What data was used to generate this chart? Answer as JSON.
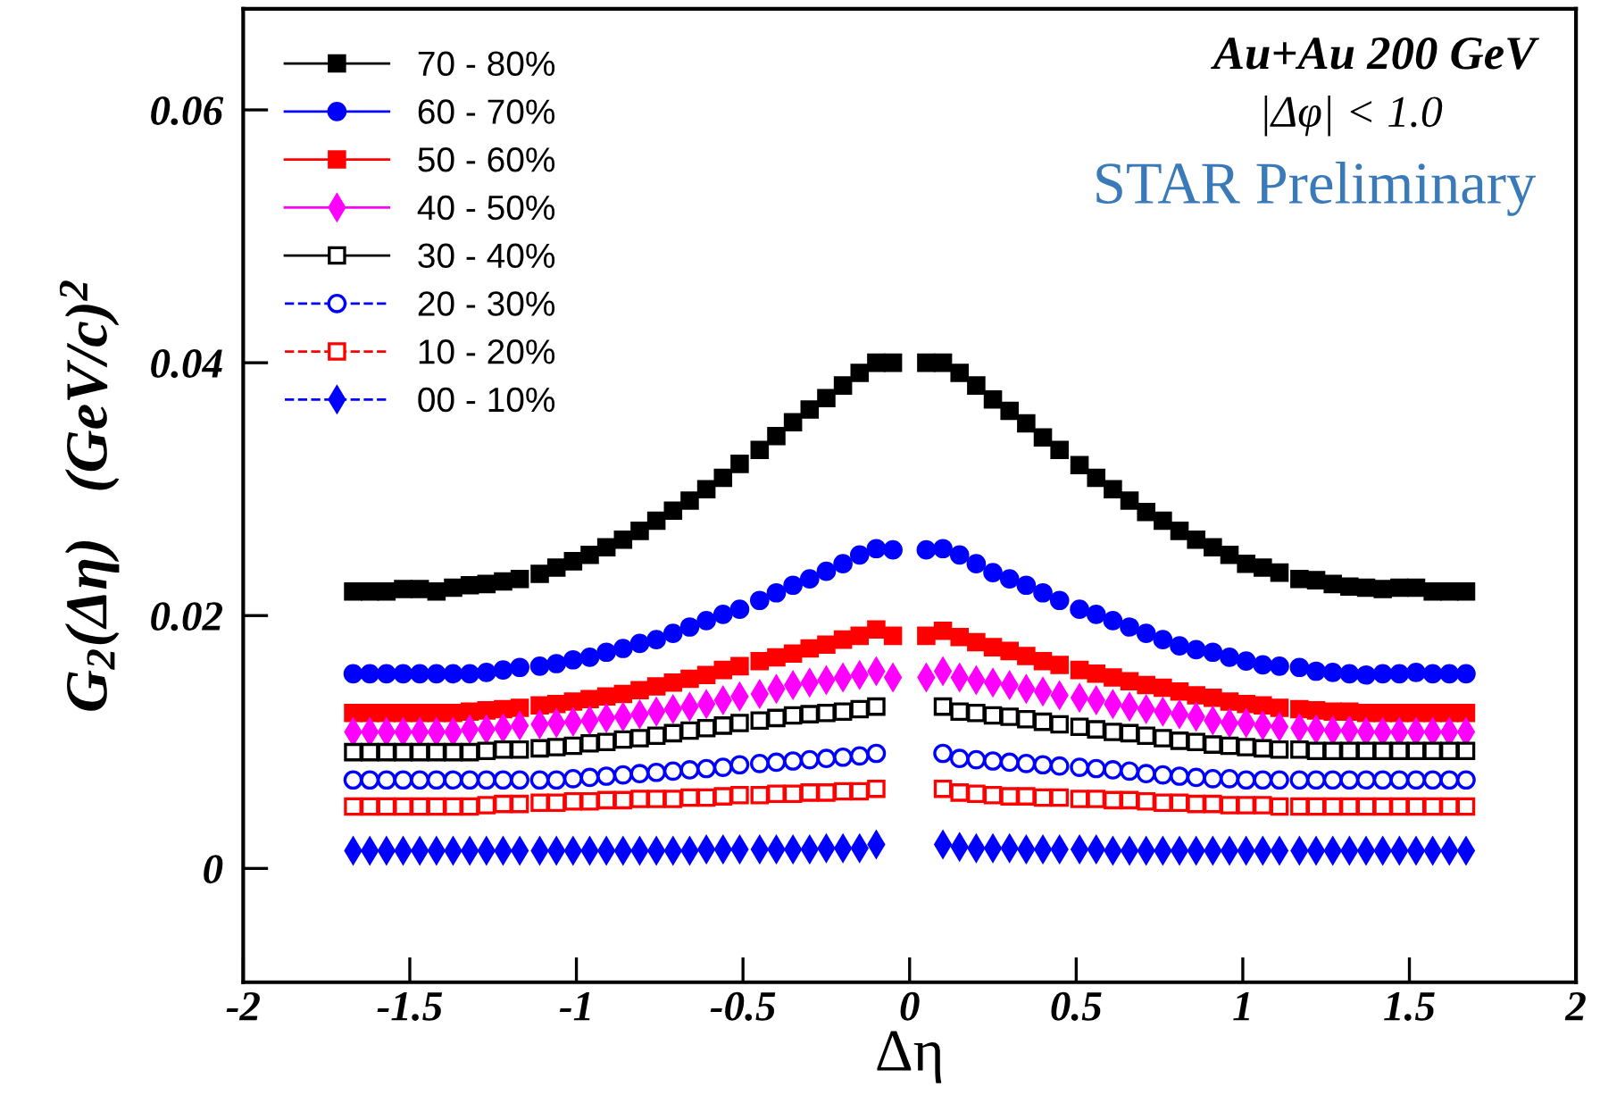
{
  "chart_data": {
    "type": "scatter",
    "xlabel": "Δη",
    "ylabel": "G$_{2}$(Δη)   (GeV/c)$^{2}$",
    "annotations": [
      "Au+Au 200 GeV",
      "|Δφ| < 1.0",
      "STAR Preliminary"
    ],
    "xlim": [
      -2,
      2
    ],
    "ylim": [
      -0.009,
      0.068
    ],
    "xticks": [
      -2,
      -1.5,
      -1,
      -0.5,
      0,
      0.5,
      1,
      1.5,
      2
    ],
    "yticks": [
      0,
      0.02,
      0.04,
      0.06
    ],
    "grid": false,
    "legend": "top left",
    "series": [
      {
        "name": "70 - 80%",
        "color": "#000000",
        "marker": "square",
        "line_style": "solid",
        "x": [
          -1.67,
          -1.62,
          -1.57,
          -1.52,
          -1.47,
          -1.42,
          -1.37,
          -1.32,
          -1.27,
          -1.22,
          -1.17,
          -1.11,
          -1.06,
          -1.01,
          -0.96,
          -0.91,
          -0.86,
          -0.81,
          -0.76,
          -0.71,
          -0.66,
          -0.61,
          -0.56,
          -0.51,
          -0.45,
          -0.4,
          -0.35,
          -0.3,
          -0.25,
          -0.2,
          -0.15,
          -0.1,
          -0.05,
          0.05,
          0.1,
          0.15,
          0.2,
          0.25,
          0.3,
          0.35,
          0.4,
          0.45,
          0.51,
          0.56,
          0.61,
          0.66,
          0.71,
          0.76,
          0.81,
          0.86,
          0.91,
          0.96,
          1.01,
          1.06,
          1.11,
          1.17,
          1.22,
          1.27,
          1.32,
          1.37,
          1.42,
          1.47,
          1.52,
          1.57,
          1.62,
          1.67
        ],
        "values": [
          0.0219,
          0.0219,
          0.0219,
          0.0221,
          0.0221,
          0.0219,
          0.0222,
          0.0224,
          0.0225,
          0.0227,
          0.0229,
          0.0233,
          0.0238,
          0.0243,
          0.0248,
          0.0254,
          0.026,
          0.0267,
          0.0275,
          0.0283,
          0.0291,
          0.03,
          0.0309,
          0.032,
          0.0331,
          0.0342,
          0.0353,
          0.0363,
          0.0372,
          0.0382,
          0.0392,
          0.04,
          0.04,
          0.04,
          0.04,
          0.0392,
          0.0382,
          0.0371,
          0.0362,
          0.0352,
          0.0341,
          0.0331,
          0.0319,
          0.0309,
          0.03,
          0.0291,
          0.0282,
          0.0275,
          0.0267,
          0.026,
          0.0254,
          0.0248,
          0.0241,
          0.0238,
          0.0234,
          0.0229,
          0.0228,
          0.0225,
          0.0223,
          0.0222,
          0.0221,
          0.0222,
          0.0222,
          0.0219,
          0.0219,
          0.0219
        ]
      },
      {
        "name": "60 - 70%",
        "color": "#0000ff",
        "marker": "circle",
        "line_style": "solid",
        "x": [
          -1.67,
          -1.62,
          -1.57,
          -1.52,
          -1.47,
          -1.42,
          -1.37,
          -1.32,
          -1.27,
          -1.22,
          -1.17,
          -1.11,
          -1.06,
          -1.01,
          -0.96,
          -0.91,
          -0.86,
          -0.81,
          -0.76,
          -0.71,
          -0.66,
          -0.61,
          -0.56,
          -0.51,
          -0.45,
          -0.4,
          -0.35,
          -0.3,
          -0.25,
          -0.2,
          -0.15,
          -0.1,
          -0.05,
          0.05,
          0.1,
          0.15,
          0.2,
          0.25,
          0.3,
          0.35,
          0.4,
          0.45,
          0.51,
          0.56,
          0.61,
          0.66,
          0.71,
          0.76,
          0.81,
          0.86,
          0.91,
          0.96,
          1.01,
          1.06,
          1.11,
          1.17,
          1.22,
          1.27,
          1.32,
          1.37,
          1.42,
          1.47,
          1.52,
          1.57,
          1.62,
          1.67
        ],
        "values": [
          0.0154,
          0.0154,
          0.0154,
          0.0154,
          0.0154,
          0.0154,
          0.0154,
          0.0154,
          0.0155,
          0.0157,
          0.0159,
          0.016,
          0.0162,
          0.0165,
          0.0167,
          0.0171,
          0.0174,
          0.0178,
          0.0181,
          0.0186,
          0.0191,
          0.0196,
          0.0201,
          0.0205,
          0.0212,
          0.0218,
          0.0224,
          0.0229,
          0.0235,
          0.0241,
          0.0248,
          0.0253,
          0.0252,
          0.0252,
          0.0253,
          0.0248,
          0.0241,
          0.0234,
          0.0229,
          0.0224,
          0.0218,
          0.0212,
          0.0205,
          0.0201,
          0.0196,
          0.0191,
          0.0186,
          0.0181,
          0.0176,
          0.0173,
          0.0171,
          0.0167,
          0.0164,
          0.0161,
          0.016,
          0.0159,
          0.0156,
          0.0155,
          0.0154,
          0.0153,
          0.0154,
          0.0154,
          0.0155,
          0.0154,
          0.0154,
          0.0154
        ]
      },
      {
        "name": "50 - 60%",
        "color": "#ff0000",
        "marker": "square",
        "line_style": "solid",
        "x": [
          -1.67,
          -1.62,
          -1.57,
          -1.52,
          -1.47,
          -1.42,
          -1.37,
          -1.32,
          -1.27,
          -1.22,
          -1.17,
          -1.11,
          -1.06,
          -1.01,
          -0.96,
          -0.91,
          -0.86,
          -0.81,
          -0.76,
          -0.71,
          -0.66,
          -0.61,
          -0.56,
          -0.51,
          -0.45,
          -0.4,
          -0.35,
          -0.3,
          -0.25,
          -0.2,
          -0.15,
          -0.1,
          -0.05,
          0.05,
          0.1,
          0.15,
          0.2,
          0.25,
          0.3,
          0.35,
          0.4,
          0.45,
          0.51,
          0.56,
          0.61,
          0.66,
          0.71,
          0.76,
          0.81,
          0.86,
          0.91,
          0.96,
          1.01,
          1.06,
          1.11,
          1.17,
          1.22,
          1.27,
          1.32,
          1.37,
          1.42,
          1.47,
          1.52,
          1.57,
          1.62,
          1.67
        ],
        "values": [
          0.0123,
          0.0123,
          0.0123,
          0.0123,
          0.0123,
          0.0123,
          0.0123,
          0.0124,
          0.0125,
          0.0126,
          0.0127,
          0.0129,
          0.013,
          0.0132,
          0.0134,
          0.0136,
          0.0138,
          0.0141,
          0.0144,
          0.0147,
          0.015,
          0.0153,
          0.0157,
          0.016,
          0.0164,
          0.0167,
          0.017,
          0.0174,
          0.0177,
          0.0181,
          0.0184,
          0.0189,
          0.0184,
          0.0184,
          0.0188,
          0.0183,
          0.0179,
          0.0175,
          0.0172,
          0.0168,
          0.0164,
          0.0161,
          0.0157,
          0.0154,
          0.0151,
          0.0148,
          0.0145,
          0.0143,
          0.014,
          0.0137,
          0.0135,
          0.0132,
          0.013,
          0.0129,
          0.0127,
          0.0126,
          0.0125,
          0.0124,
          0.0124,
          0.0123,
          0.0123,
          0.0123,
          0.0123,
          0.0123,
          0.0123,
          0.0123
        ]
      },
      {
        "name": "40 - 50%",
        "color": "#ff00ff",
        "marker": "diamond",
        "line_style": "solid",
        "x": [
          -1.67,
          -1.62,
          -1.57,
          -1.52,
          -1.47,
          -1.42,
          -1.37,
          -1.32,
          -1.27,
          -1.22,
          -1.17,
          -1.11,
          -1.06,
          -1.01,
          -0.96,
          -0.91,
          -0.86,
          -0.81,
          -0.76,
          -0.71,
          -0.66,
          -0.61,
          -0.56,
          -0.51,
          -0.45,
          -0.4,
          -0.35,
          -0.3,
          -0.25,
          -0.2,
          -0.15,
          -0.1,
          -0.05,
          0.05,
          0.1,
          0.15,
          0.2,
          0.25,
          0.3,
          0.35,
          0.4,
          0.45,
          0.51,
          0.56,
          0.61,
          0.66,
          0.71,
          0.76,
          0.81,
          0.86,
          0.91,
          0.96,
          1.01,
          1.06,
          1.11,
          1.17,
          1.22,
          1.27,
          1.32,
          1.37,
          1.42,
          1.47,
          1.52,
          1.57,
          1.62,
          1.67
        ],
        "values": [
          0.0108,
          0.0108,
          0.0108,
          0.0108,
          0.0108,
          0.0108,
          0.0108,
          0.011,
          0.011,
          0.0111,
          0.0113,
          0.0114,
          0.0115,
          0.0116,
          0.0117,
          0.0119,
          0.012,
          0.0122,
          0.0124,
          0.0126,
          0.0128,
          0.013,
          0.0133,
          0.0136,
          0.0138,
          0.0142,
          0.0145,
          0.0147,
          0.0149,
          0.0151,
          0.0153,
          0.0156,
          0.0151,
          0.0151,
          0.0156,
          0.0151,
          0.0149,
          0.0147,
          0.0145,
          0.0142,
          0.014,
          0.0137,
          0.0135,
          0.0133,
          0.013,
          0.0128,
          0.0126,
          0.0124,
          0.0122,
          0.012,
          0.0117,
          0.0115,
          0.0115,
          0.0113,
          0.0112,
          0.0111,
          0.011,
          0.0109,
          0.0109,
          0.0108,
          0.0108,
          0.0108,
          0.0108,
          0.0108,
          0.0108,
          0.0108
        ]
      },
      {
        "name": "30 - 40%",
        "color": "#000000",
        "marker": "square-open",
        "line_style": "solid",
        "x": [
          -1.67,
          -1.62,
          -1.57,
          -1.52,
          -1.47,
          -1.42,
          -1.37,
          -1.32,
          -1.27,
          -1.22,
          -1.17,
          -1.11,
          -1.06,
          -1.01,
          -0.96,
          -0.91,
          -0.86,
          -0.81,
          -0.76,
          -0.71,
          -0.66,
          -0.61,
          -0.56,
          -0.51,
          -0.45,
          -0.4,
          -0.35,
          -0.3,
          -0.25,
          -0.2,
          -0.15,
          -0.1,
          0.1,
          0.15,
          0.2,
          0.25,
          0.3,
          0.35,
          0.4,
          0.45,
          0.51,
          0.56,
          0.61,
          0.66,
          0.71,
          0.76,
          0.81,
          0.86,
          0.91,
          0.96,
          1.01,
          1.06,
          1.11,
          1.17,
          1.22,
          1.27,
          1.32,
          1.37,
          1.42,
          1.47,
          1.52,
          1.57,
          1.62,
          1.67
        ],
        "values": [
          0.0092,
          0.0092,
          0.0092,
          0.0092,
          0.0092,
          0.0092,
          0.0092,
          0.0092,
          0.0093,
          0.0094,
          0.0094,
          0.0095,
          0.0096,
          0.0097,
          0.0099,
          0.01,
          0.0102,
          0.0103,
          0.0105,
          0.0107,
          0.0109,
          0.0111,
          0.0113,
          0.0115,
          0.0117,
          0.0119,
          0.0121,
          0.0122,
          0.0123,
          0.0124,
          0.0126,
          0.0128,
          0.0128,
          0.0124,
          0.0123,
          0.0121,
          0.012,
          0.0118,
          0.0116,
          0.0114,
          0.0112,
          0.011,
          0.0108,
          0.0107,
          0.0105,
          0.0103,
          0.0101,
          0.01,
          0.0098,
          0.0097,
          0.0096,
          0.0095,
          0.0094,
          0.0094,
          0.0093,
          0.0093,
          0.0093,
          0.0093,
          0.0093,
          0.0093,
          0.0093,
          0.0093,
          0.0093,
          0.0093
        ]
      },
      {
        "name": "20 - 30%",
        "color": "#0000ff",
        "marker": "circle-open",
        "line_style": "dashed",
        "x": [
          -1.67,
          -1.62,
          -1.57,
          -1.52,
          -1.47,
          -1.42,
          -1.37,
          -1.32,
          -1.27,
          -1.22,
          -1.17,
          -1.11,
          -1.06,
          -1.01,
          -0.96,
          -0.91,
          -0.86,
          -0.81,
          -0.76,
          -0.71,
          -0.66,
          -0.61,
          -0.56,
          -0.51,
          -0.45,
          -0.4,
          -0.35,
          -0.3,
          -0.25,
          -0.2,
          -0.15,
          -0.1,
          0.1,
          0.15,
          0.2,
          0.25,
          0.3,
          0.35,
          0.4,
          0.45,
          0.51,
          0.56,
          0.61,
          0.66,
          0.71,
          0.76,
          0.81,
          0.86,
          0.91,
          0.96,
          1.01,
          1.06,
          1.11,
          1.17,
          1.22,
          1.27,
          1.32,
          1.37,
          1.42,
          1.47,
          1.52,
          1.57,
          1.62,
          1.67
        ],
        "values": [
          0.007,
          0.007,
          0.007,
          0.007,
          0.007,
          0.007,
          0.007,
          0.007,
          0.007,
          0.007,
          0.007,
          0.007,
          0.007,
          0.0071,
          0.0072,
          0.0073,
          0.0074,
          0.0075,
          0.0076,
          0.0077,
          0.0078,
          0.0079,
          0.008,
          0.0082,
          0.0083,
          0.0084,
          0.0085,
          0.0086,
          0.0087,
          0.0088,
          0.0089,
          0.0091,
          0.0091,
          0.0087,
          0.0086,
          0.0085,
          0.0084,
          0.0083,
          0.0082,
          0.0081,
          0.008,
          0.0079,
          0.0078,
          0.0077,
          0.0075,
          0.0074,
          0.0073,
          0.0072,
          0.0071,
          0.0071,
          0.007,
          0.007,
          0.007,
          0.007,
          0.007,
          0.007,
          0.007,
          0.007,
          0.007,
          0.007,
          0.007,
          0.007,
          0.007,
          0.007
        ]
      },
      {
        "name": "10 - 20%",
        "color": "#ff0000",
        "marker": "square-open",
        "line_style": "dashed",
        "x": [
          -1.67,
          -1.62,
          -1.57,
          -1.52,
          -1.47,
          -1.42,
          -1.37,
          -1.32,
          -1.27,
          -1.22,
          -1.17,
          -1.11,
          -1.06,
          -1.01,
          -0.96,
          -0.91,
          -0.86,
          -0.81,
          -0.76,
          -0.71,
          -0.66,
          -0.61,
          -0.56,
          -0.51,
          -0.45,
          -0.4,
          -0.35,
          -0.3,
          -0.25,
          -0.2,
          -0.15,
          -0.1,
          0.1,
          0.15,
          0.2,
          0.25,
          0.3,
          0.35,
          0.4,
          0.45,
          0.51,
          0.56,
          0.61,
          0.66,
          0.71,
          0.76,
          0.81,
          0.86,
          0.91,
          0.96,
          1.01,
          1.06,
          1.11,
          1.17,
          1.22,
          1.27,
          1.32,
          1.37,
          1.42,
          1.47,
          1.52,
          1.57,
          1.62,
          1.67
        ],
        "values": [
          0.0049,
          0.0049,
          0.0049,
          0.0049,
          0.0049,
          0.0049,
          0.0049,
          0.0049,
          0.005,
          0.0051,
          0.0051,
          0.0052,
          0.0052,
          0.0053,
          0.0053,
          0.0054,
          0.0054,
          0.0055,
          0.0055,
          0.0055,
          0.0056,
          0.0056,
          0.0057,
          0.0058,
          0.0058,
          0.0059,
          0.0059,
          0.006,
          0.006,
          0.0061,
          0.0061,
          0.0063,
          0.0063,
          0.006,
          0.0059,
          0.0058,
          0.0057,
          0.0057,
          0.0056,
          0.0056,
          0.0055,
          0.0055,
          0.0054,
          0.0054,
          0.0053,
          0.0052,
          0.0052,
          0.0051,
          0.0051,
          0.005,
          0.005,
          0.005,
          0.0049,
          0.0049,
          0.0049,
          0.0049,
          0.0049,
          0.0049,
          0.0049,
          0.0049,
          0.0049,
          0.0049,
          0.0049,
          0.0049
        ]
      },
      {
        "name": "00 - 10%",
        "color": "#0000ff",
        "marker": "diamond",
        "line_style": "dashed",
        "x": [
          -1.67,
          -1.62,
          -1.57,
          -1.52,
          -1.47,
          -1.42,
          -1.37,
          -1.32,
          -1.27,
          -1.22,
          -1.17,
          -1.11,
          -1.06,
          -1.01,
          -0.96,
          -0.91,
          -0.86,
          -0.81,
          -0.76,
          -0.71,
          -0.66,
          -0.61,
          -0.56,
          -0.51,
          -0.45,
          -0.4,
          -0.35,
          -0.3,
          -0.25,
          -0.2,
          -0.15,
          -0.1,
          0.1,
          0.15,
          0.2,
          0.25,
          0.3,
          0.35,
          0.4,
          0.45,
          0.51,
          0.56,
          0.61,
          0.66,
          0.71,
          0.76,
          0.81,
          0.86,
          0.91,
          0.96,
          1.01,
          1.06,
          1.11,
          1.17,
          1.22,
          1.27,
          1.32,
          1.37,
          1.42,
          1.47,
          1.52,
          1.57,
          1.62,
          1.67
        ],
        "values": [
          0.0014,
          0.0014,
          0.0014,
          0.0014,
          0.0014,
          0.0014,
          0.0014,
          0.0014,
          0.0014,
          0.0014,
          0.0014,
          0.0014,
          0.0014,
          0.0014,
          0.0014,
          0.0014,
          0.0014,
          0.0014,
          0.0014,
          0.0014,
          0.0014,
          0.0015,
          0.0015,
          0.0015,
          0.0015,
          0.0015,
          0.0015,
          0.0015,
          0.0016,
          0.0016,
          0.0016,
          0.0019,
          0.0019,
          0.0017,
          0.0016,
          0.0016,
          0.0016,
          0.0015,
          0.0015,
          0.0015,
          0.0015,
          0.0015,
          0.0014,
          0.0014,
          0.0014,
          0.0014,
          0.0014,
          0.0014,
          0.0014,
          0.0014,
          0.0014,
          0.0014,
          0.0014,
          0.0014,
          0.0014,
          0.0014,
          0.0014,
          0.0014,
          0.0014,
          0.0014,
          0.0014,
          0.0014,
          0.0014,
          0.0014
        ]
      }
    ]
  }
}
